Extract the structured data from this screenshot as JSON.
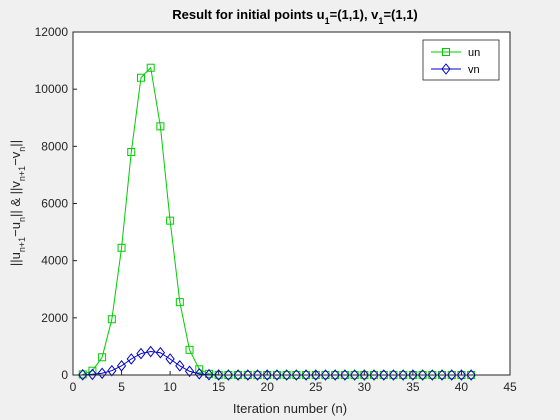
{
  "chart_data": {
    "type": "line",
    "title_parts": [
      {
        "text": "Result for initial points u",
        "sub": false
      },
      {
        "text": "1",
        "sub": true
      },
      {
        "text": "=(1,1), v",
        "sub": false
      },
      {
        "text": "1",
        "sub": true
      },
      {
        "text": "=(1,1)",
        "sub": false
      }
    ],
    "xlabel": "Iteration number (n)",
    "ylabel_parts": [
      {
        "text": "||u",
        "sub": false
      },
      {
        "text": "n+1",
        "sub": true
      },
      {
        "text": "−u",
        "sub": false
      },
      {
        "text": "n",
        "sub": true
      },
      {
        "text": "|| & ||v",
        "sub": false
      },
      {
        "text": "n+1",
        "sub": true
      },
      {
        "text": "−v",
        "sub": false
      },
      {
        "text": "n",
        "sub": true
      },
      {
        "text": "||",
        "sub": false
      }
    ],
    "xlim": [
      0,
      45
    ],
    "ylim": [
      0,
      12000
    ],
    "xticks": [
      0,
      5,
      10,
      15,
      20,
      25,
      30,
      35,
      40,
      45
    ],
    "yticks": [
      0,
      2000,
      4000,
      6000,
      8000,
      10000,
      12000
    ],
    "grid": false,
    "legend_position": "top-right",
    "x": [
      1,
      2,
      3,
      4,
      5,
      6,
      7,
      8,
      9,
      10,
      11,
      12,
      13,
      14,
      15,
      16,
      17,
      18,
      19,
      20,
      21,
      22,
      23,
      24,
      25,
      26,
      27,
      28,
      29,
      30,
      31,
      32,
      33,
      34,
      35,
      36,
      37,
      38,
      39,
      40,
      41
    ],
    "series": [
      {
        "name": "un",
        "color": "#00cc00",
        "marker": "square",
        "values": [
          20,
          150,
          620,
          1950,
          4450,
          7800,
          10400,
          10750,
          8700,
          5400,
          2550,
          880,
          200,
          40,
          5,
          0,
          0,
          0,
          0,
          0,
          0,
          0,
          0,
          0,
          0,
          0,
          0,
          0,
          0,
          0,
          0,
          0,
          0,
          0,
          0,
          0,
          0,
          0,
          0,
          0,
          0
        ]
      },
      {
        "name": "vn",
        "color": "#0000cc",
        "marker": "diamond",
        "values": [
          5,
          20,
          60,
          150,
          320,
          560,
          750,
          820,
          780,
          560,
          320,
          130,
          40,
          10,
          2,
          0,
          0,
          0,
          0,
          0,
          0,
          0,
          0,
          0,
          0,
          0,
          0,
          0,
          0,
          0,
          0,
          0,
          0,
          0,
          0,
          0,
          0,
          0,
          0,
          0,
          0
        ]
      }
    ]
  }
}
